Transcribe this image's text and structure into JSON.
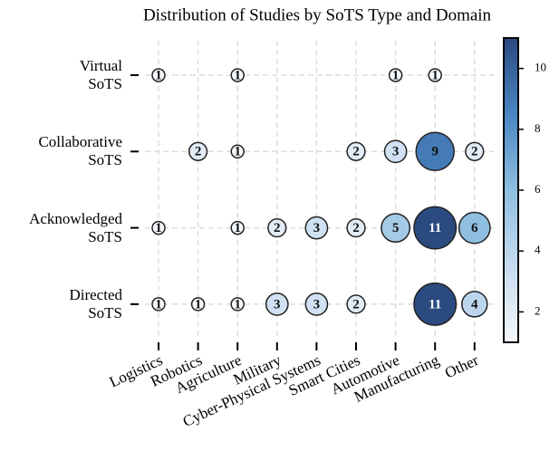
{
  "chart_data": {
    "type": "bubble",
    "title": "Distribution of Studies by SoTS Type and Domain",
    "categories": [
      "Logistics",
      "Robotics",
      "Agriculture",
      "Military",
      "Cyber-Physical Systems",
      "Smart Cities",
      "Automotive",
      "Manufacturing",
      "Other"
    ],
    "series": [
      {
        "name": "Virtual\nSoTS",
        "values": [
          1,
          null,
          1,
          null,
          null,
          null,
          1,
          1,
          null
        ]
      },
      {
        "name": "Collaborative\nSoTS",
        "values": [
          null,
          2,
          1,
          null,
          null,
          2,
          3,
          9,
          2
        ]
      },
      {
        "name": "Acknowledged\nSoTS",
        "values": [
          1,
          null,
          1,
          2,
          3,
          2,
          5,
          11,
          6
        ]
      },
      {
        "name": "Directed\nSoTS",
        "values": [
          1,
          1,
          1,
          3,
          3,
          2,
          null,
          11,
          4
        ]
      }
    ],
    "grid": true,
    "colorbar": {
      "lim": [
        1,
        11
      ],
      "ticks": [
        2,
        4,
        6,
        8,
        10
      ],
      "colors": [
        "#f4f8fc",
        "#c6dbef",
        "#8fbfe0",
        "#4a86c3",
        "#2b4a80"
      ]
    }
  }
}
